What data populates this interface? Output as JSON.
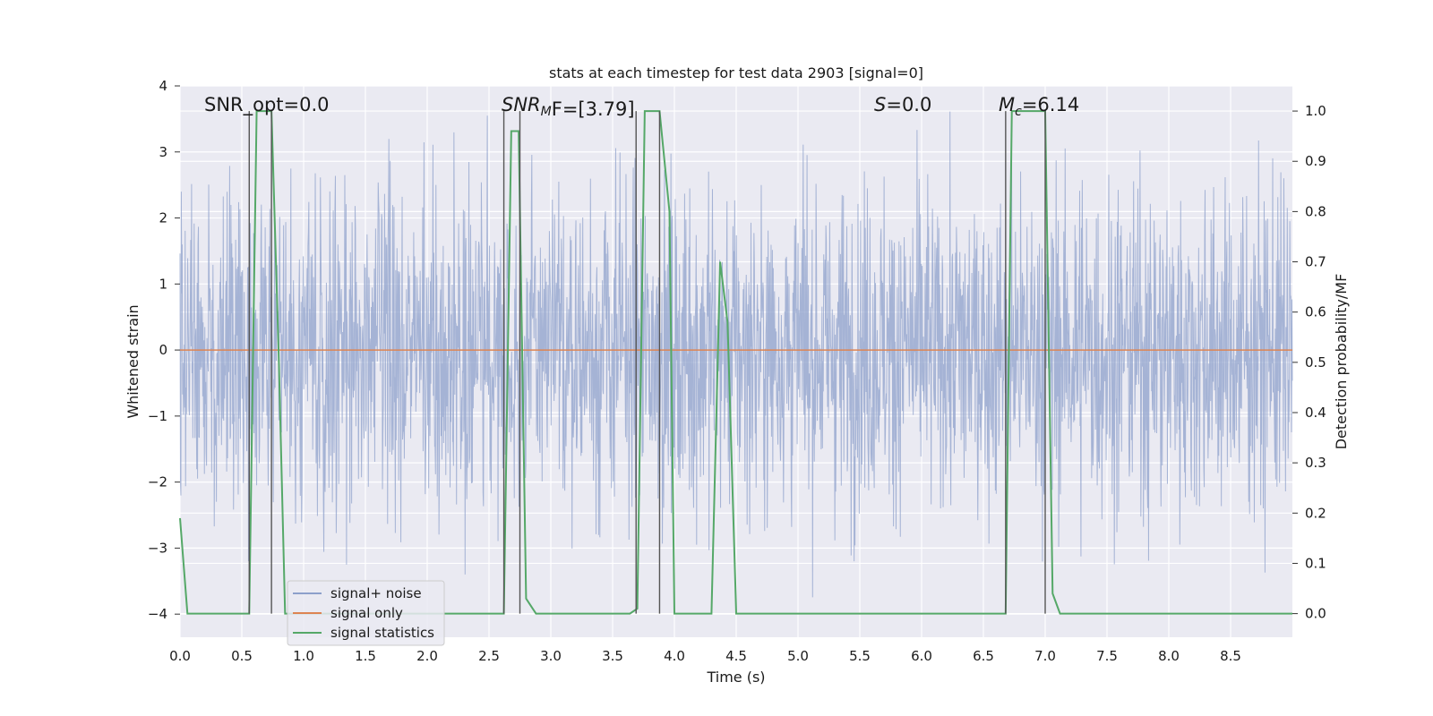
{
  "chart_data": {
    "type": "line",
    "title": "stats at each timestep for test data 2903 [signal=0]",
    "xlabel": "Time (s)",
    "ylabel_left": "Whitened strain",
    "ylabel_right": "Detection probability/MF",
    "xlim": [
      0.0,
      9.0
    ],
    "ylim_left": [
      -4.35,
      4.0
    ],
    "ylim_right": [
      -0.047,
      1.05
    ],
    "x_ticks": [
      "0.0",
      "0.5",
      "1.0",
      "1.5",
      "2.0",
      "2.5",
      "3.0",
      "3.5",
      "4.0",
      "4.5",
      "5.0",
      "5.5",
      "6.0",
      "6.5",
      "7.0",
      "7.5",
      "8.0",
      "8.5"
    ],
    "y_ticks_left": [
      "4",
      "3",
      "2",
      "1",
      "0",
      "−1",
      "−2",
      "−3",
      "−4"
    ],
    "y_ticks_right": [
      "1.0",
      "0.9",
      "0.8",
      "0.7",
      "0.6",
      "0.5",
      "0.4",
      "0.3",
      "0.2",
      "0.1",
      "0.0"
    ],
    "grid": true,
    "legend_position": "lower-left",
    "annotations": {
      "snr_opt": "SNR_opt=0.0",
      "snr_mf_base": "SNR",
      "snr_mf_sub": "M",
      "snr_mf_rest": "F=[3.79]",
      "s_italic": "S",
      "s_rest": "=0.0",
      "mc_base": "M",
      "mc_sub": "c",
      "mc_rest": "=6.14"
    },
    "series": [
      {
        "name": "signal+ noise",
        "axis": "left",
        "color": "#8da0cb",
        "description_kind": "noise",
        "approx_std": 1.0,
        "approx_range": [
          -4.0,
          3.85
        ]
      },
      {
        "name": "signal only",
        "axis": "left",
        "color": "#dd8452",
        "x": [
          0.0,
          9.0
        ],
        "y": [
          0.0,
          0.0
        ]
      },
      {
        "name": "signal statistics",
        "axis": "right",
        "color": "#55a868",
        "x": [
          0.0,
          0.06,
          0.1,
          0.5,
          0.56,
          0.62,
          0.68,
          0.74,
          0.8,
          0.85,
          2.57,
          2.62,
          2.68,
          2.74,
          2.8,
          2.88,
          3.64,
          3.7,
          3.76,
          3.88,
          3.96,
          4.0,
          4.3,
          4.37,
          4.43,
          4.5,
          6.68,
          6.73,
          6.79,
          7.0,
          7.06,
          7.12,
          9.0
        ],
        "y": [
          0.19,
          0.0,
          0.0,
          0.0,
          0.0,
          1.0,
          1.0,
          1.0,
          0.5,
          0.0,
          0.0,
          0.0,
          0.96,
          0.96,
          0.03,
          0.0,
          0.0,
          0.01,
          1.0,
          1.0,
          0.8,
          0.0,
          0.0,
          0.7,
          0.58,
          0.0,
          0.0,
          1.0,
          1.0,
          1.0,
          0.04,
          0.0,
          0.0
        ]
      }
    ],
    "vlines_x": [
      0.56,
      0.74,
      2.62,
      2.75,
      3.69,
      3.88,
      6.68,
      7.0
    ],
    "vlines_y_range": [
      0.0,
      1.0
    ],
    "vlines_color": "#555555"
  }
}
